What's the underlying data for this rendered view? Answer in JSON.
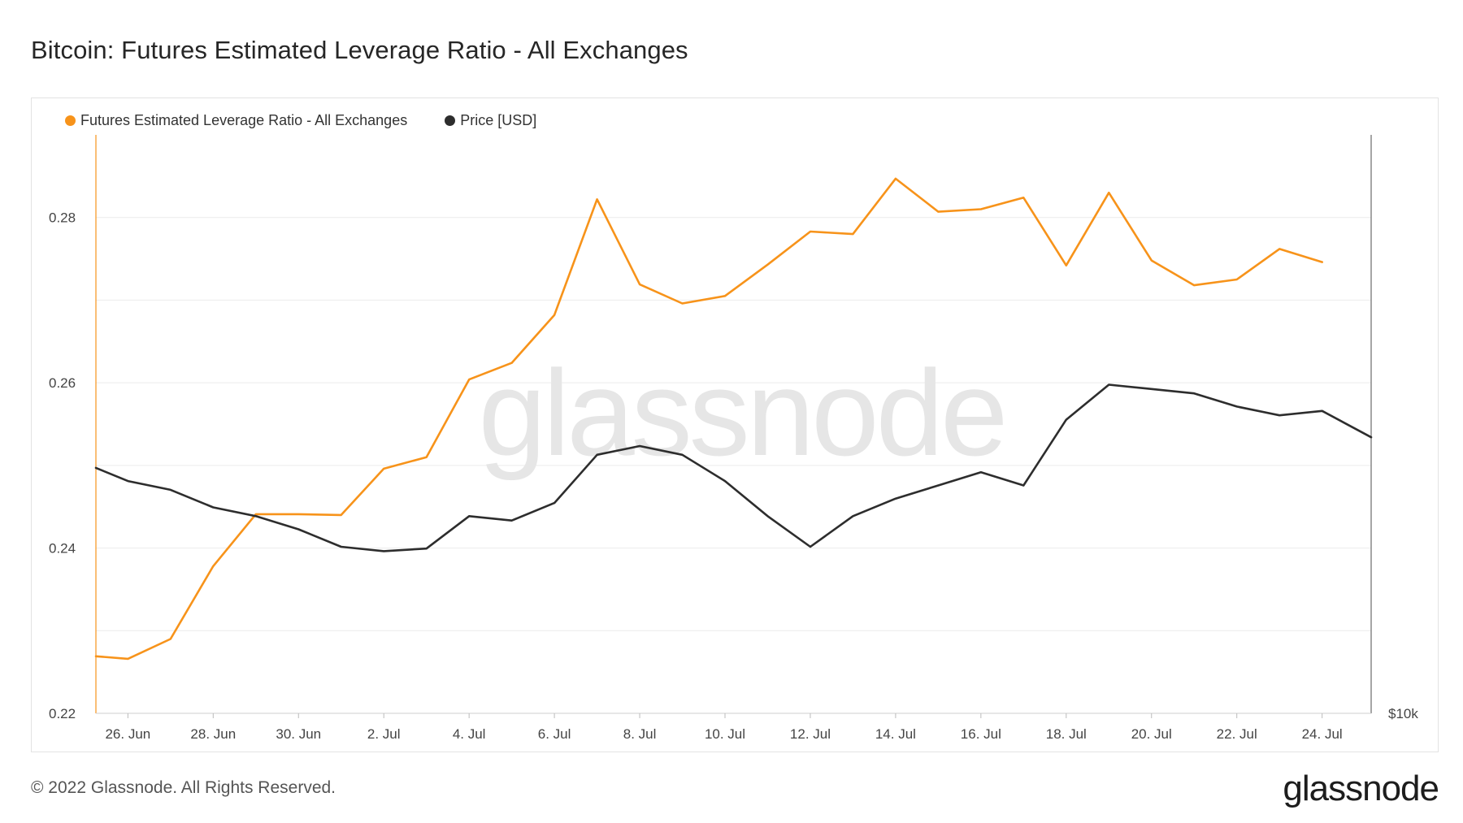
{
  "title": "Bitcoin: Futures Estimated Leverage Ratio - All Exchanges",
  "footer": "© 2022 Glassnode. All Rights Reserved.",
  "brand": "glassnode",
  "watermark": "glassnode",
  "colors": {
    "leverage": "#f7931a",
    "price": "#2d2d2d",
    "grid": "#ececec",
    "axis_text": "#444444"
  },
  "chart_data": {
    "type": "line",
    "title": "Bitcoin: Futures Estimated Leverage Ratio - All Exchanges",
    "legend": [
      {
        "name": "Futures Estimated Leverage Ratio - All Exchanges",
        "color": "#f7931a"
      },
      {
        "name": "Price [USD]",
        "color": "#2d2d2d"
      }
    ],
    "x_ticks": [
      "26. Jun",
      "28. Jun",
      "30. Jun",
      "2. Jul",
      "4. Jul",
      "6. Jul",
      "8. Jul",
      "10. Jul",
      "12. Jul",
      "14. Jul",
      "16. Jul",
      "18. Jul",
      "20. Jul",
      "22. Jul",
      "24. Jul"
    ],
    "x_range_days": [
      -0.75,
      29.15
    ],
    "y_ticks": [
      0.22,
      0.24,
      0.26,
      0.28
    ],
    "ylim": [
      0.22,
      0.29
    ],
    "right_axis_label": "$10k",
    "price_ylim": [
      18400,
      25000
    ],
    "series": [
      {
        "name": "Futures Estimated Leverage Ratio - All Exchanges",
        "axis": "left",
        "x": [
          -0.75,
          0,
          1,
          2,
          3,
          4,
          5,
          6,
          7,
          8,
          9,
          10,
          11,
          12,
          13,
          14,
          15,
          16,
          17,
          18,
          19,
          20,
          21,
          22,
          23,
          24,
          25,
          26,
          27,
          28
        ],
        "values": [
          0.2269,
          0.2266,
          0.229,
          0.2378,
          0.2441,
          0.2441,
          0.244,
          0.2496,
          0.251,
          0.2604,
          0.2624,
          0.2682,
          0.2822,
          0.2719,
          0.2696,
          0.2705,
          0.2743,
          0.2783,
          0.278,
          0.2847,
          0.2807,
          0.281,
          0.2824,
          0.2742,
          0.283,
          0.2748,
          0.2718,
          0.2725,
          0.2762,
          0.2746
        ]
      },
      {
        "name": "Price [USD]",
        "axis": "right",
        "x": [
          -0.75,
          0,
          1,
          2,
          3,
          4,
          5,
          6,
          7,
          8,
          9,
          10,
          11,
          12,
          13,
          14,
          15,
          16,
          17,
          18,
          19,
          20,
          21,
          22,
          23,
          24,
          25,
          26,
          27,
          28,
          29.15
        ],
        "values": [
          21200,
          21050,
          20950,
          20750,
          20650,
          20500,
          20300,
          20250,
          20280,
          20650,
          20600,
          20800,
          21350,
          21450,
          21350,
          21050,
          20650,
          20300,
          20650,
          20850,
          21000,
          21150,
          21000,
          21750,
          22150,
          22100,
          22050,
          21900,
          21800,
          21850,
          21550
        ]
      }
    ]
  }
}
